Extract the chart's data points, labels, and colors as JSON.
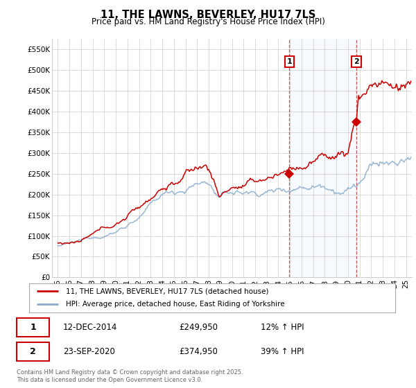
{
  "title": "11, THE LAWNS, BEVERLEY, HU17 7LS",
  "subtitle": "Price paid vs. HM Land Registry's House Price Index (HPI)",
  "ylabel_ticks": [
    "£0",
    "£50K",
    "£100K",
    "£150K",
    "£200K",
    "£250K",
    "£300K",
    "£350K",
    "£400K",
    "£450K",
    "£500K",
    "£550K"
  ],
  "ytick_values": [
    0,
    50000,
    100000,
    150000,
    200000,
    250000,
    300000,
    350000,
    400000,
    450000,
    500000,
    550000
  ],
  "ylim": [
    0,
    575000
  ],
  "xlim_start": 1994.5,
  "xlim_end": 2025.5,
  "xtick_years": [
    1995,
    1996,
    1997,
    1998,
    1999,
    2000,
    2001,
    2002,
    2003,
    2004,
    2005,
    2006,
    2007,
    2008,
    2009,
    2010,
    2011,
    2012,
    2013,
    2014,
    2015,
    2016,
    2017,
    2018,
    2019,
    2020,
    2021,
    2022,
    2023,
    2024,
    2025
  ],
  "sale1_x": 2014.95,
  "sale1_y": 249950,
  "sale1_label": "1",
  "sale1_date": "12-DEC-2014",
  "sale1_price": "£249,950",
  "sale1_hpi": "12% ↑ HPI",
  "sale2_x": 2020.73,
  "sale2_y": 374950,
  "sale2_label": "2",
  "sale2_date": "23-SEP-2020",
  "sale2_price": "£374,950",
  "sale2_hpi": "39% ↑ HPI",
  "line1_color": "#cc0000",
  "line2_color": "#88aacc",
  "vline_color": "#cc4444",
  "highlight_color": "#ddeeff",
  "grid_color": "#cccccc",
  "bg_color": "#ffffff",
  "legend1_label": "11, THE LAWNS, BEVERLEY, HU17 7LS (detached house)",
  "legend2_label": "HPI: Average price, detached house, East Riding of Yorkshire",
  "footnote": "Contains HM Land Registry data © Crown copyright and database right 2025.\nThis data is licensed under the Open Government Licence v3.0.",
  "sale_marker_color": "#cc0000",
  "sale_marker_size": 7
}
